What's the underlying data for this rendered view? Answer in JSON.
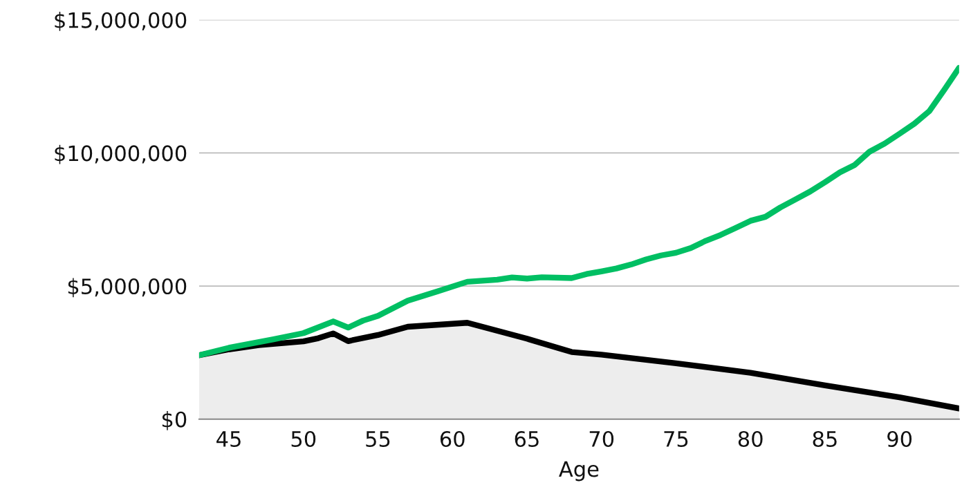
{
  "chart_data": {
    "type": "line",
    "xlabel": "Age",
    "xlim": [
      43,
      94
    ],
    "xticks": [
      45,
      50,
      55,
      60,
      65,
      70,
      75,
      80,
      85,
      90
    ],
    "ylim": [
      0,
      15000000
    ],
    "yticks": [
      {
        "value": 0,
        "label": "$0"
      },
      {
        "value": 5000000,
        "label": "$5,000,000"
      },
      {
        "value": 10000000,
        "label": "$10,000,000"
      },
      {
        "value": 15000000,
        "label": "$15,000,000"
      }
    ],
    "grid": "y",
    "series": [
      {
        "type": "area",
        "color": "#000000",
        "x": [
          43,
          45,
          47,
          50,
          51,
          52,
          53,
          55,
          57,
          61,
          63,
          65,
          68,
          70,
          75,
          80,
          85,
          90,
          94
        ],
        "values": [
          2400000,
          2620000,
          2780000,
          2920000,
          3040000,
          3220000,
          2930000,
          3160000,
          3470000,
          3620000,
          3320000,
          3020000,
          2520000,
          2420000,
          2100000,
          1740000,
          1270000,
          820000,
          400000
        ]
      },
      {
        "color": "#00bf63",
        "x": [
          43,
          45,
          48,
          50,
          52,
          53,
          54,
          55,
          57,
          59,
          61,
          63,
          64,
          65,
          66,
          68,
          69,
          70,
          71,
          72,
          73,
          74,
          75,
          76,
          77,
          78,
          79,
          80,
          81,
          82,
          83,
          84,
          85,
          86,
          87,
          88,
          89,
          90,
          91,
          92,
          93,
          94
        ],
        "values": [
          2400000,
          2680000,
          3000000,
          3230000,
          3670000,
          3440000,
          3700000,
          3880000,
          4450000,
          4800000,
          5160000,
          5240000,
          5320000,
          5280000,
          5330000,
          5300000,
          5450000,
          5550000,
          5660000,
          5810000,
          6000000,
          6150000,
          6250000,
          6430000,
          6700000,
          6920000,
          7180000,
          7450000,
          7600000,
          7950000,
          8250000,
          8550000,
          8900000,
          9270000,
          9550000,
          10050000,
          10350000,
          10720000,
          11100000,
          11570000,
          12370000,
          13200000
        ]
      }
    ]
  }
}
